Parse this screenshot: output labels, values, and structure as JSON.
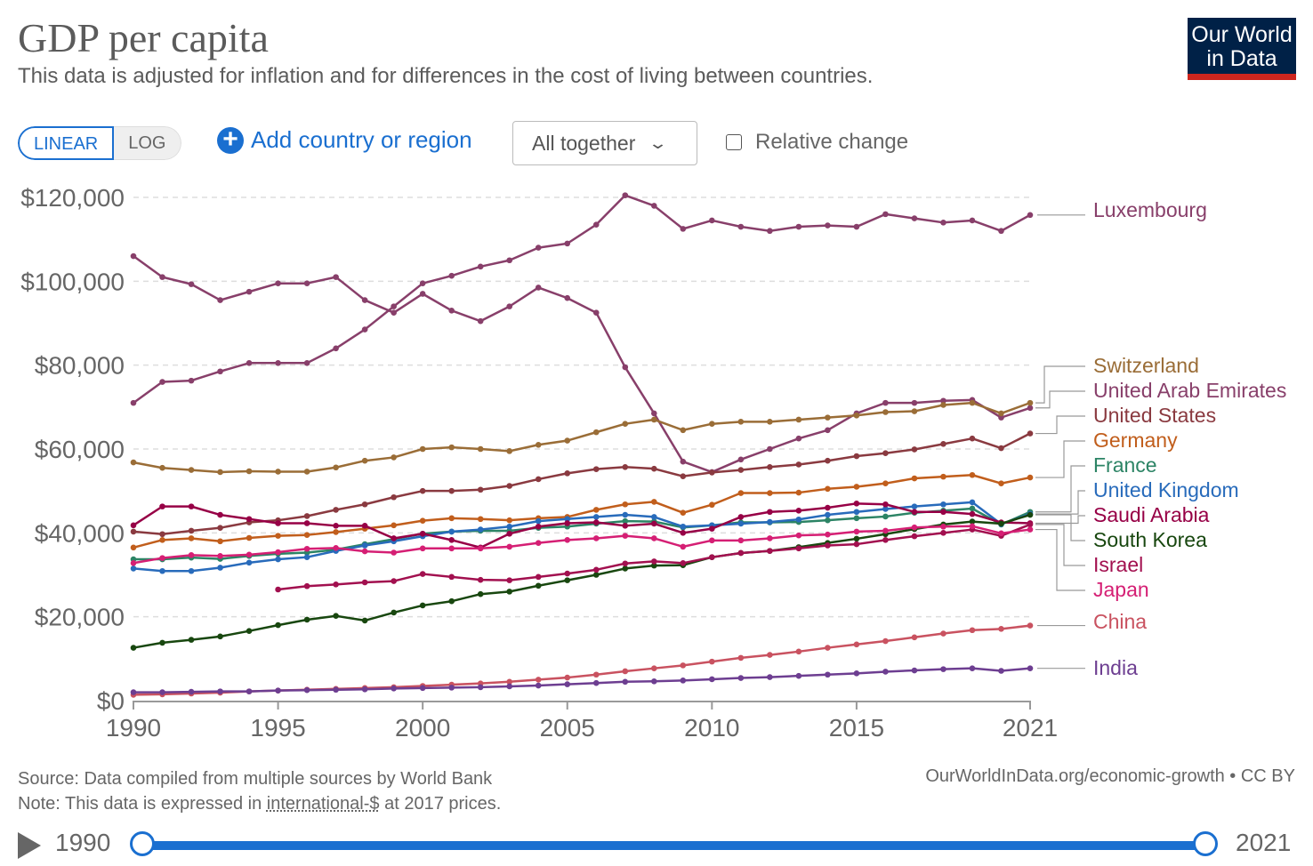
{
  "header": {
    "title": "GDP per capita",
    "subtitle": "This data is adjusted for inflation and for differences in the cost of living between countries.",
    "logo": "Our World in Data"
  },
  "controls": {
    "linear": "LINEAR",
    "log": "LOG",
    "add_country": "Add country or region",
    "facet": "All together",
    "relative_change": "Relative change"
  },
  "footer": {
    "source": "Source: Data compiled from multiple sources by World Bank",
    "note_prefix": "Note: This data is expressed in ",
    "note_link": "international-$",
    "note_suffix": " at 2017 prices.",
    "license": "OurWorldInData.org/economic-growth • CC BY"
  },
  "timeline": {
    "start": "1990",
    "end": "2021"
  },
  "chart_data": {
    "type": "line",
    "title": "GDP per capita",
    "xlabel": "",
    "ylabel": "",
    "xlim": [
      1990,
      2021
    ],
    "ylim": [
      0,
      120000
    ],
    "y_ticks": [
      "$0",
      "$20,000",
      "$40,000",
      "$60,000",
      "$80,000",
      "$100,000",
      "$120,000"
    ],
    "y_tick_values": [
      0,
      20000,
      40000,
      60000,
      80000,
      100000,
      120000
    ],
    "x_ticks": [
      "1990",
      "1995",
      "2000",
      "2005",
      "2010",
      "2015",
      "2021"
    ],
    "x_tick_values": [
      1990,
      1995,
      2000,
      2005,
      2010,
      2015,
      2021
    ],
    "grid": true,
    "legend": "right (inline labels)",
    "x": [
      1990,
      1991,
      1992,
      1993,
      1994,
      1995,
      1996,
      1997,
      1998,
      1999,
      2000,
      2001,
      2002,
      2003,
      2004,
      2005,
      2006,
      2007,
      2008,
      2009,
      2010,
      2011,
      2012,
      2013,
      2014,
      2015,
      2016,
      2017,
      2018,
      2019,
      2020,
      2021
    ],
    "series": [
      {
        "name": "Luxembourg",
        "color": "#883f6a",
        "values": [
          71000,
          76000,
          76300,
          78500,
          80500,
          80500,
          80500,
          84000,
          88500,
          94000,
          99500,
          101300,
          103500,
          105000,
          108000,
          109000,
          113500,
          120500,
          118000,
          112500,
          114500,
          113000,
          112000,
          113000,
          113300,
          113000,
          116000,
          115000,
          114000,
          114500,
          112000,
          115800
        ]
      },
      {
        "name": "United Arab Emirates",
        "color": "#883f6a",
        "values": [
          106000,
          101000,
          99300,
          95500,
          97500,
          99500,
          99500,
          101000,
          95500,
          92500,
          97000,
          93000,
          90500,
          94000,
          98500,
          96000,
          92500,
          79500,
          68500,
          57000,
          54500,
          57500,
          60000,
          62500,
          64500,
          68500,
          71000,
          71000,
          71500,
          71700,
          67500,
          69800
        ]
      },
      {
        "name": "Switzerland",
        "color": "#9a6d37",
        "values": [
          56800,
          55500,
          55000,
          54500,
          54700,
          54600,
          54600,
          55600,
          57200,
          58000,
          60000,
          60400,
          60000,
          59500,
          61000,
          62000,
          64000,
          66000,
          67000,
          64500,
          66000,
          66500,
          66500,
          67000,
          67500,
          68000,
          68800,
          69000,
          70500,
          71000,
          68500,
          71000
        ]
      },
      {
        "name": "United States",
        "color": "#8a3a40",
        "values": [
          40300,
          39700,
          40500,
          41200,
          42500,
          43000,
          44000,
          45500,
          46800,
          48500,
          50000,
          50000,
          50300,
          51200,
          52800,
          54200,
          55200,
          55700,
          55300,
          53500,
          54400,
          55000,
          55700,
          56300,
          57200,
          58300,
          59000,
          59900,
          61200,
          62500,
          60200,
          63700
        ]
      },
      {
        "name": "Germany",
        "color": "#c15e1c",
        "values": [
          36500,
          38300,
          38700,
          38000,
          38800,
          39300,
          39500,
          40200,
          41000,
          41800,
          42900,
          43500,
          43300,
          43000,
          43500,
          43800,
          45500,
          46800,
          47400,
          44800,
          46700,
          49500,
          49500,
          49600,
          50500,
          51000,
          51800,
          53000,
          53400,
          53800,
          51800,
          53200
        ]
      },
      {
        "name": "France",
        "color": "#2c8465",
        "values": [
          33700,
          33700,
          34100,
          33800,
          34500,
          35000,
          35300,
          36000,
          37300,
          38500,
          39800,
          40300,
          40500,
          40500,
          41200,
          41500,
          42200,
          42800,
          42700,
          41300,
          41800,
          42500,
          42500,
          42600,
          43000,
          43500,
          43900,
          44800,
          45300,
          45800,
          42000,
          45000
        ]
      },
      {
        "name": "United Kingdom",
        "color": "#286bbb",
        "values": [
          31500,
          30900,
          30900,
          31700,
          32900,
          33700,
          34200,
          35700,
          37000,
          38000,
          39200,
          40300,
          40800,
          41500,
          42800,
          43300,
          43800,
          44300,
          43800,
          41500,
          41800,
          42200,
          42600,
          43200,
          44300,
          45000,
          45700,
          46300,
          46800,
          47300,
          42100,
          44500
        ]
      },
      {
        "name": "Saudi Arabia",
        "color": "#970046",
        "values": [
          41800,
          46300,
          46300,
          44300,
          43300,
          42300,
          42300,
          41700,
          41700,
          38700,
          39800,
          38300,
          36500,
          39800,
          41500,
          42300,
          42500,
          41700,
          42200,
          40000,
          41000,
          43800,
          45000,
          45300,
          46000,
          47000,
          46800,
          45000,
          45000,
          44500,
          42500,
          42300
        ]
      },
      {
        "name": "South Korea",
        "color": "#18470f",
        "values": [
          12600,
          13800,
          14500,
          15300,
          16600,
          18000,
          19300,
          20200,
          19100,
          21000,
          22700,
          23700,
          25400,
          26000,
          27400,
          28700,
          30000,
          31500,
          32200,
          32300,
          34200,
          35200,
          35700,
          36600,
          37600,
          38600,
          39700,
          40900,
          42000,
          42700,
          42200,
          44300
        ]
      },
      {
        "name": "Israel",
        "color": "#a2104f",
        "values": [
          null,
          null,
          null,
          null,
          null,
          26500,
          27300,
          27700,
          28200,
          28500,
          30200,
          29500,
          28800,
          28700,
          29500,
          30300,
          31200,
          32700,
          33200,
          32800,
          34200,
          35200,
          35700,
          36300,
          37000,
          37300,
          38300,
          39200,
          40000,
          40800,
          39300,
          42000
        ]
      },
      {
        "name": "Japan",
        "color": "#d51f74",
        "values": [
          32800,
          34000,
          34700,
          34500,
          34800,
          35400,
          36200,
          36400,
          35600,
          35300,
          36300,
          36300,
          36300,
          36700,
          37600,
          38300,
          38700,
          39300,
          38700,
          36700,
          38200,
          38200,
          38700,
          39400,
          39600,
          40300,
          40500,
          41300,
          41500,
          41600,
          39900,
          40800
        ]
      },
      {
        "name": "China",
        "color": "#c95260",
        "values": [
          1400,
          1500,
          1700,
          1900,
          2200,
          2400,
          2600,
          2800,
          3000,
          3200,
          3500,
          3800,
          4100,
          4500,
          5000,
          5500,
          6200,
          7000,
          7700,
          8400,
          9300,
          10200,
          10900,
          11700,
          12600,
          13400,
          14200,
          15100,
          16000,
          16800,
          17100,
          17900
        ]
      },
      {
        "name": "India",
        "color": "#6d3e91",
        "values": [
          2000,
          2000,
          2100,
          2200,
          2200,
          2400,
          2500,
          2600,
          2700,
          2900,
          3000,
          3100,
          3200,
          3400,
          3600,
          3900,
          4200,
          4500,
          4600,
          4800,
          5100,
          5400,
          5600,
          5900,
          6200,
          6500,
          6900,
          7200,
          7500,
          7700,
          7100,
          7700
        ]
      }
    ]
  }
}
